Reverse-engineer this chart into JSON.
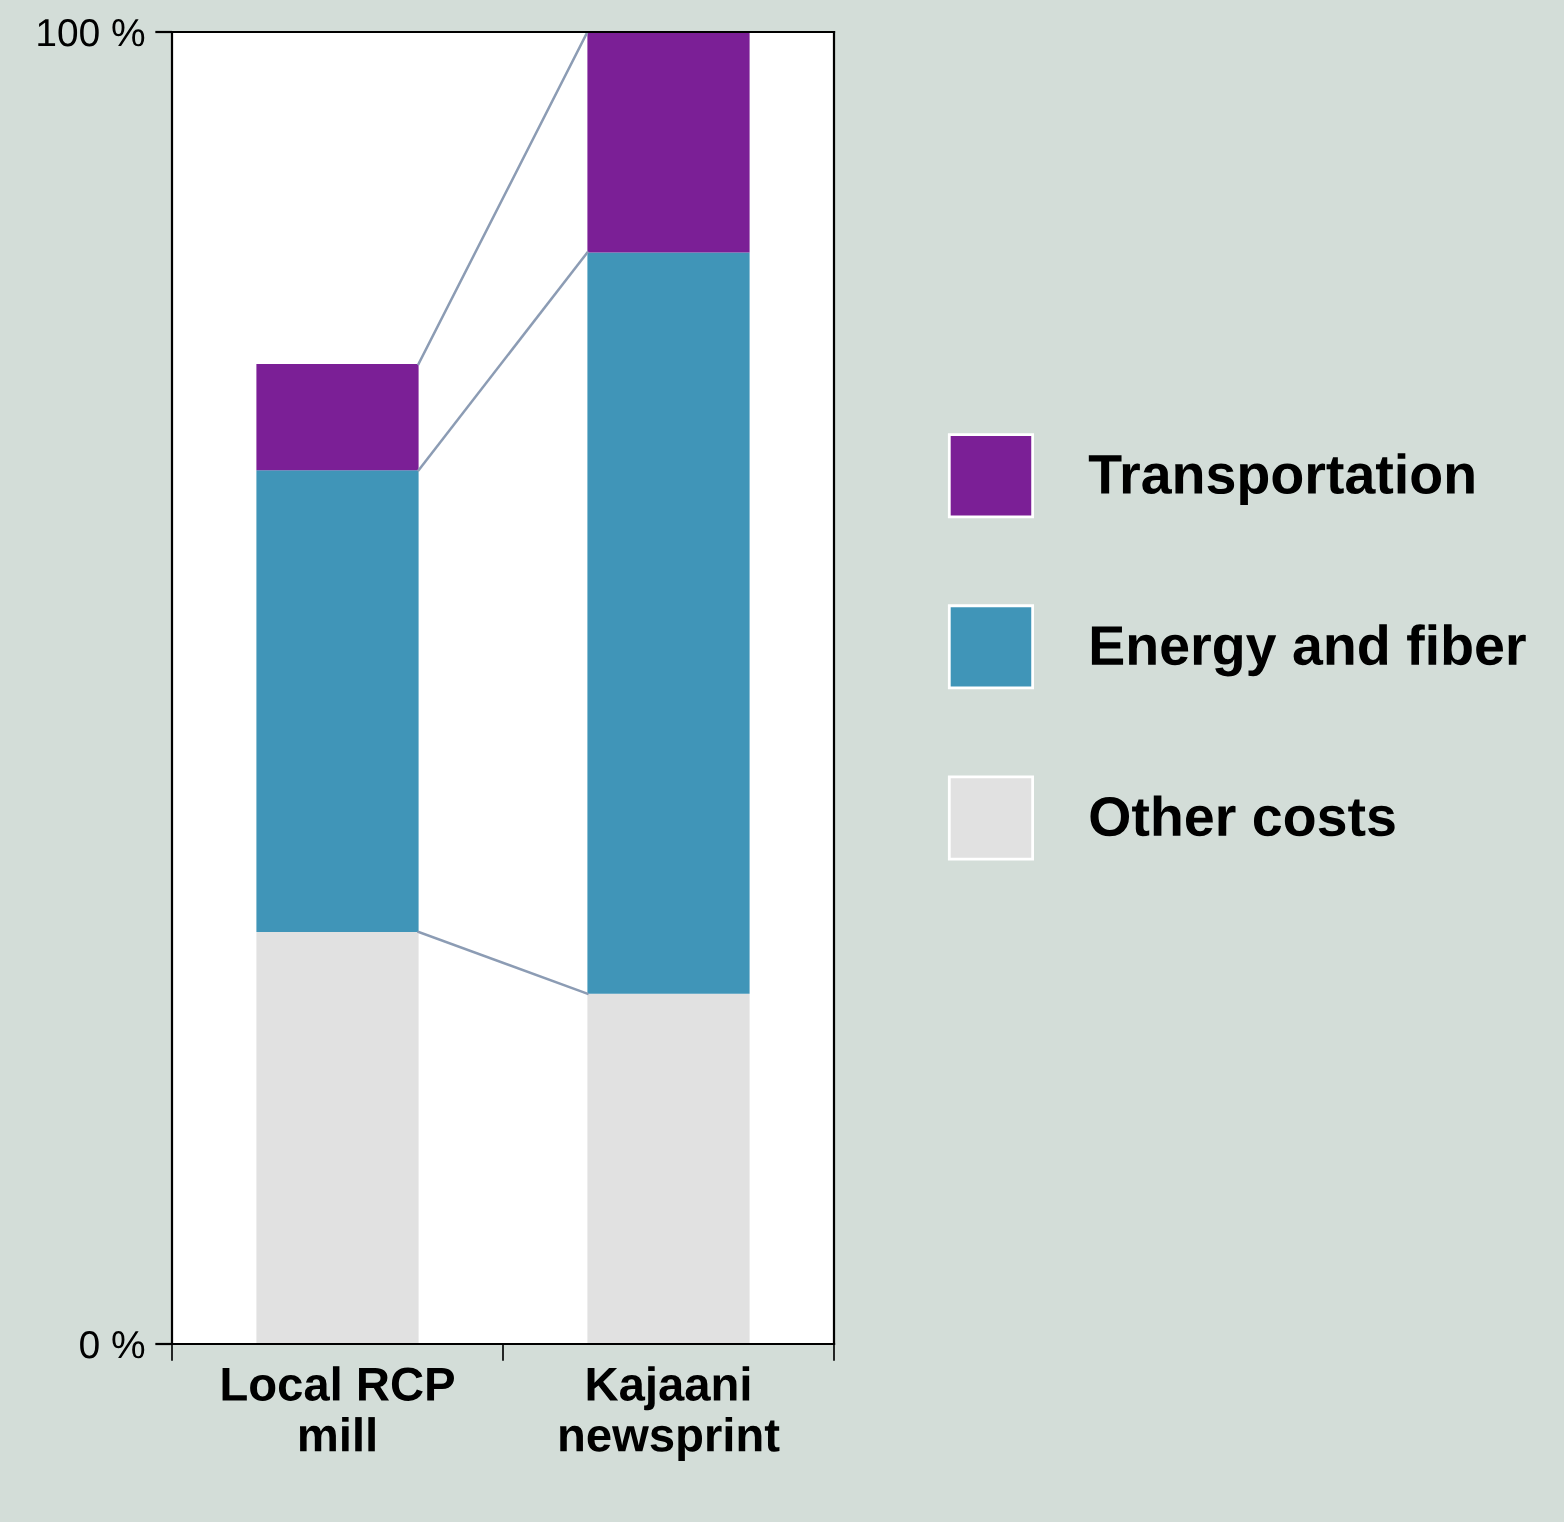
{
  "chart_data": {
    "type": "bar",
    "stacked": true,
    "categories": [
      "Local RCP\nmill",
      "Kajaani\nnewsprint"
    ],
    "series": [
      {
        "name": "Other costs",
        "color": "#e1e1e1",
        "values": [
          31.4,
          26.7
        ]
      },
      {
        "name": "Energy and fiber",
        "color": "#4095b8",
        "values": [
          35.2,
          56.5
        ]
      },
      {
        "name": "Transportation",
        "color": "#7b1f96",
        "values": [
          8.1,
          16.8
        ]
      }
    ],
    "ylim": [
      0,
      100
    ],
    "yticks": [
      {
        "value": 0,
        "label": "0 %"
      },
      {
        "value": 100,
        "label": "100 %"
      }
    ],
    "grid": false,
    "legend": "right"
  }
}
